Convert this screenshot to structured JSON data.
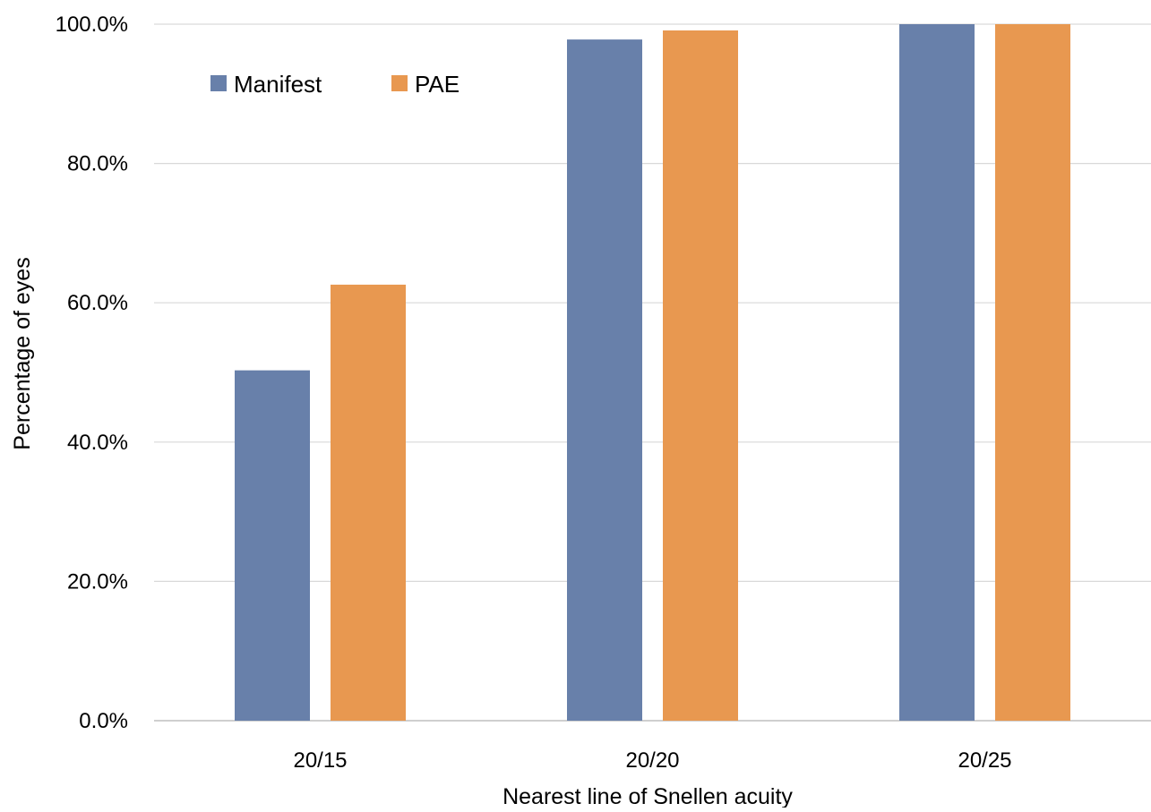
{
  "chart_data": {
    "type": "bar",
    "title": "",
    "xlabel": "Nearest line of Snellen acuity",
    "ylabel": "Percentage of eyes",
    "categories": [
      "20/15",
      "20/20",
      "20/25"
    ],
    "series": [
      {
        "name": "Manifest",
        "color": "#6880aa",
        "values": [
          50.3,
          97.8,
          100.0
        ]
      },
      {
        "name": "PAE",
        "color": "#e89850",
        "values": [
          62.6,
          99.1,
          100.0
        ]
      }
    ],
    "ylim": [
      0,
      100
    ],
    "yticks": [
      0,
      20,
      40,
      60,
      80,
      100
    ],
    "ytick_labels": [
      "0.0%",
      "20.0%",
      "40.0%",
      "60.0%",
      "80.0%",
      "100.0%"
    ],
    "grid": true,
    "legend_position": "top-left"
  }
}
